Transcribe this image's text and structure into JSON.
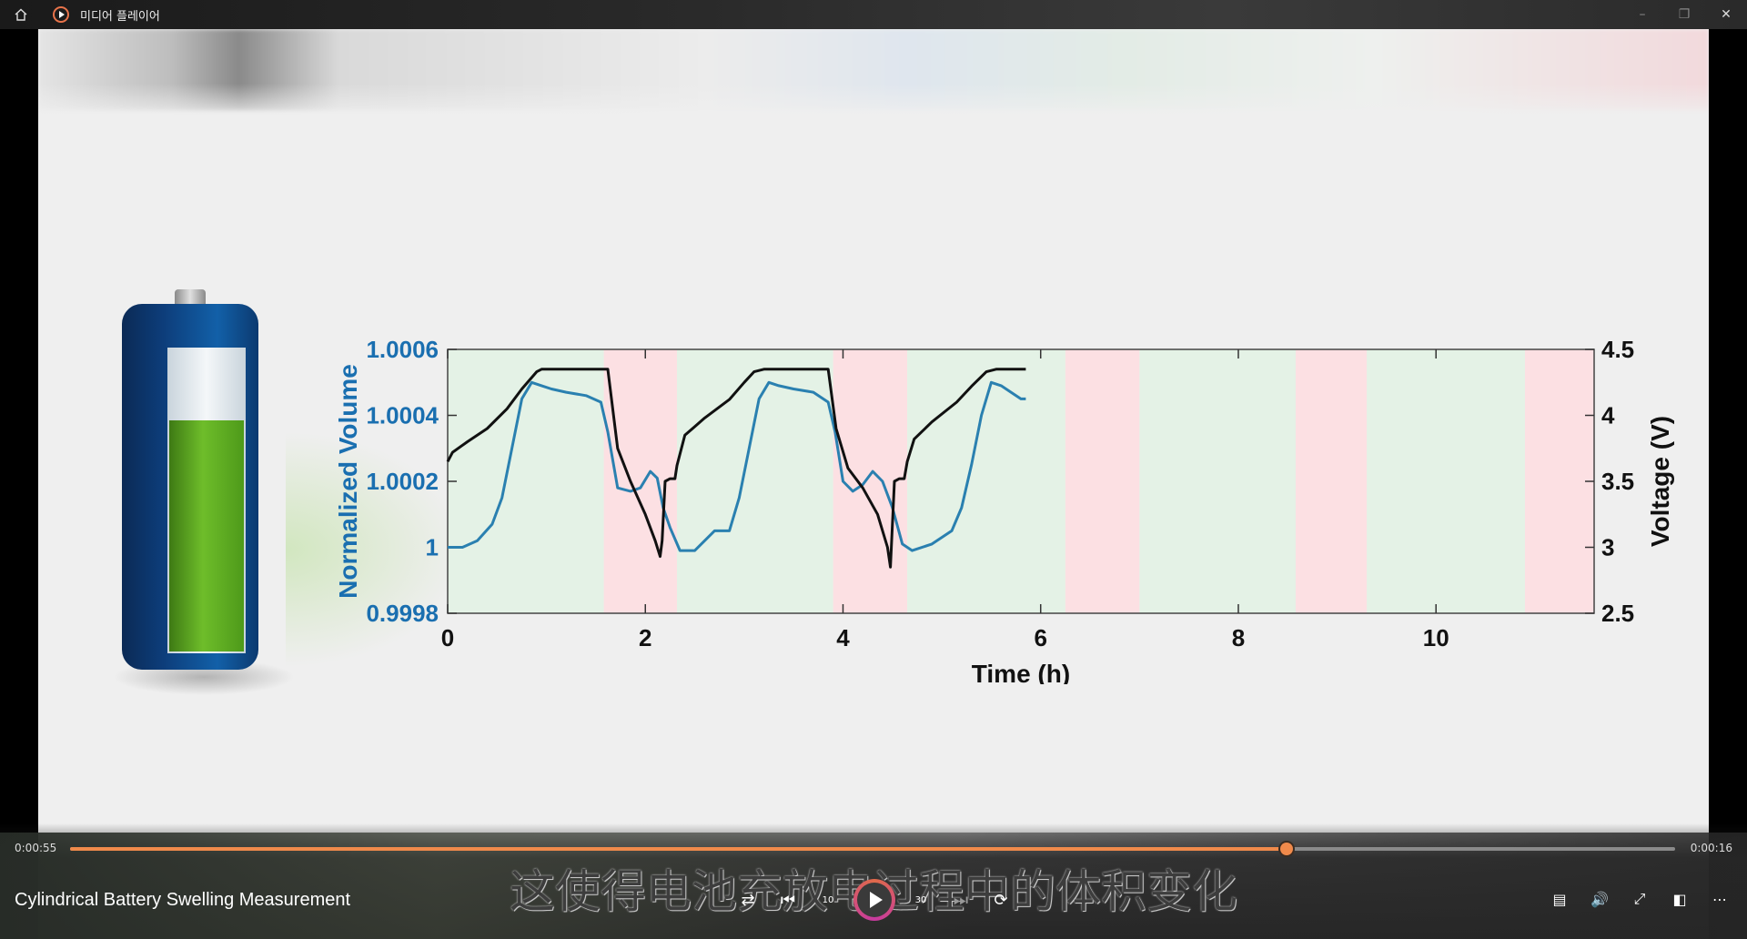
{
  "window": {
    "app_title": "미디어 플레이어",
    "minimize_icon": "minimize-icon",
    "restore_icon": "restore-icon",
    "close_icon": "close-icon"
  },
  "player": {
    "elapsed": "0:00:55",
    "remaining": "0:00:16",
    "progress_fraction": 0.758,
    "media_title": "Cylindrical Battery Swelling Measurement",
    "subtitle": "这使得电池充放电过程中的体积变化",
    "accent_color": "#f08a4b",
    "controls": {
      "shuffle": "shuffle-icon",
      "previous": "previous-icon",
      "skip_back": "10",
      "play": "play-icon",
      "skip_forward": "30",
      "next": "next-icon",
      "repeat": "repeat-icon"
    },
    "right_controls": [
      "captions-icon",
      "volume-icon",
      "fullscreen-icon",
      "miniplayer-icon",
      "more-icon"
    ]
  },
  "chart_data": {
    "type": "line",
    "xlabel": "Time (h)",
    "ylabel_left": "Normalized Volume",
    "ylabel_right": "Voltage (V)",
    "xlim": [
      0,
      11.6
    ],
    "ylim_left": [
      0.9998,
      1.0006
    ],
    "ylim_right": [
      2.5,
      4.5
    ],
    "x_ticks": [
      "0",
      "2",
      "4",
      "6",
      "8",
      "10"
    ],
    "y_left_ticks": [
      "0.9998",
      "1",
      "1.0002",
      "1.0004",
      "1.0006"
    ],
    "y_right_ticks": [
      "2.5",
      "3",
      "3.5",
      "4",
      "4.5"
    ],
    "bands": [
      {
        "phase": "charge",
        "start": 0,
        "end": 1.58
      },
      {
        "phase": "discharge",
        "start": 1.58,
        "end": 2.32
      },
      {
        "phase": "charge",
        "start": 2.32,
        "end": 3.9
      },
      {
        "phase": "discharge",
        "start": 3.9,
        "end": 4.65
      },
      {
        "phase": "charge",
        "start": 4.65,
        "end": 6.25
      },
      {
        "phase": "discharge",
        "start": 6.25,
        "end": 7.0
      },
      {
        "phase": "charge",
        "start": 7.0,
        "end": 8.58
      },
      {
        "phase": "discharge",
        "start": 8.58,
        "end": 9.3
      },
      {
        "phase": "charge",
        "start": 9.3,
        "end": 10.9
      },
      {
        "phase": "discharge",
        "start": 10.9,
        "end": 11.6
      }
    ],
    "band_colors": {
      "charge": "#e4f2e6",
      "discharge": "#fce0e3"
    },
    "series": [
      {
        "name": "Normalized Volume",
        "axis": "left",
        "color": "#2a80b0",
        "x": [
          0,
          0.15,
          0.3,
          0.45,
          0.55,
          0.65,
          0.75,
          0.85,
          0.95,
          1.05,
          1.2,
          1.4,
          1.55,
          1.62,
          1.72,
          1.85,
          1.95,
          2.05,
          2.12,
          2.18,
          2.25,
          2.35,
          2.5,
          2.7,
          2.85,
          2.95,
          3.05,
          3.15,
          3.25,
          3.35,
          3.5,
          3.7,
          3.85,
          3.92,
          4.0,
          4.1,
          4.2,
          4.3,
          4.4,
          4.5,
          4.6,
          4.7,
          4.9,
          5.1,
          5.2,
          5.3,
          5.4,
          5.5,
          5.6,
          5.7,
          5.8,
          5.85
        ],
        "values": [
          1.0,
          1.0,
          1.00002,
          1.00007,
          1.00015,
          1.0003,
          1.00045,
          1.0005,
          1.00049,
          1.00048,
          1.00047,
          1.00046,
          1.00044,
          1.00035,
          1.00018,
          1.00017,
          1.00018,
          1.00023,
          1.00021,
          1.00012,
          1.00006,
          0.99999,
          0.99999,
          1.00005,
          1.00005,
          1.00015,
          1.0003,
          1.00045,
          1.0005,
          1.00049,
          1.00048,
          1.00047,
          1.00044,
          1.00035,
          1.0002,
          1.00017,
          1.00019,
          1.00023,
          1.0002,
          1.00012,
          1.00001,
          0.99999,
          1.00001,
          1.00005,
          1.00012,
          1.00025,
          1.0004,
          1.0005,
          1.00049,
          1.00047,
          1.00045,
          1.00045
        ]
      },
      {
        "name": "Voltage",
        "axis": "right",
        "color": "#111111",
        "x": [
          0,
          0.05,
          0.2,
          0.4,
          0.6,
          0.75,
          0.9,
          0.95,
          1.2,
          1.5,
          1.62,
          1.72,
          1.85,
          2.0,
          2.1,
          2.15,
          2.17,
          2.2,
          2.25,
          2.3,
          2.32,
          2.4,
          2.6,
          2.85,
          3.0,
          3.1,
          3.2,
          3.27,
          3.5,
          3.85,
          3.93,
          4.05,
          4.2,
          4.35,
          4.45,
          4.48,
          4.52,
          4.57,
          4.62,
          4.65,
          4.72,
          4.9,
          5.15,
          5.3,
          5.45,
          5.55,
          5.6,
          5.8,
          5.85
        ],
        "values": [
          3.65,
          3.72,
          3.8,
          3.9,
          4.05,
          4.2,
          4.33,
          4.35,
          4.35,
          4.35,
          4.35,
          3.75,
          3.5,
          3.25,
          3.05,
          2.93,
          3.05,
          3.5,
          3.52,
          3.52,
          3.62,
          3.85,
          3.98,
          4.12,
          4.25,
          4.33,
          4.35,
          4.35,
          4.35,
          4.35,
          3.9,
          3.6,
          3.45,
          3.25,
          3.0,
          2.85,
          3.5,
          3.52,
          3.52,
          3.65,
          3.82,
          3.95,
          4.1,
          4.22,
          4.33,
          4.35,
          4.35,
          4.35,
          4.35
        ]
      }
    ]
  }
}
